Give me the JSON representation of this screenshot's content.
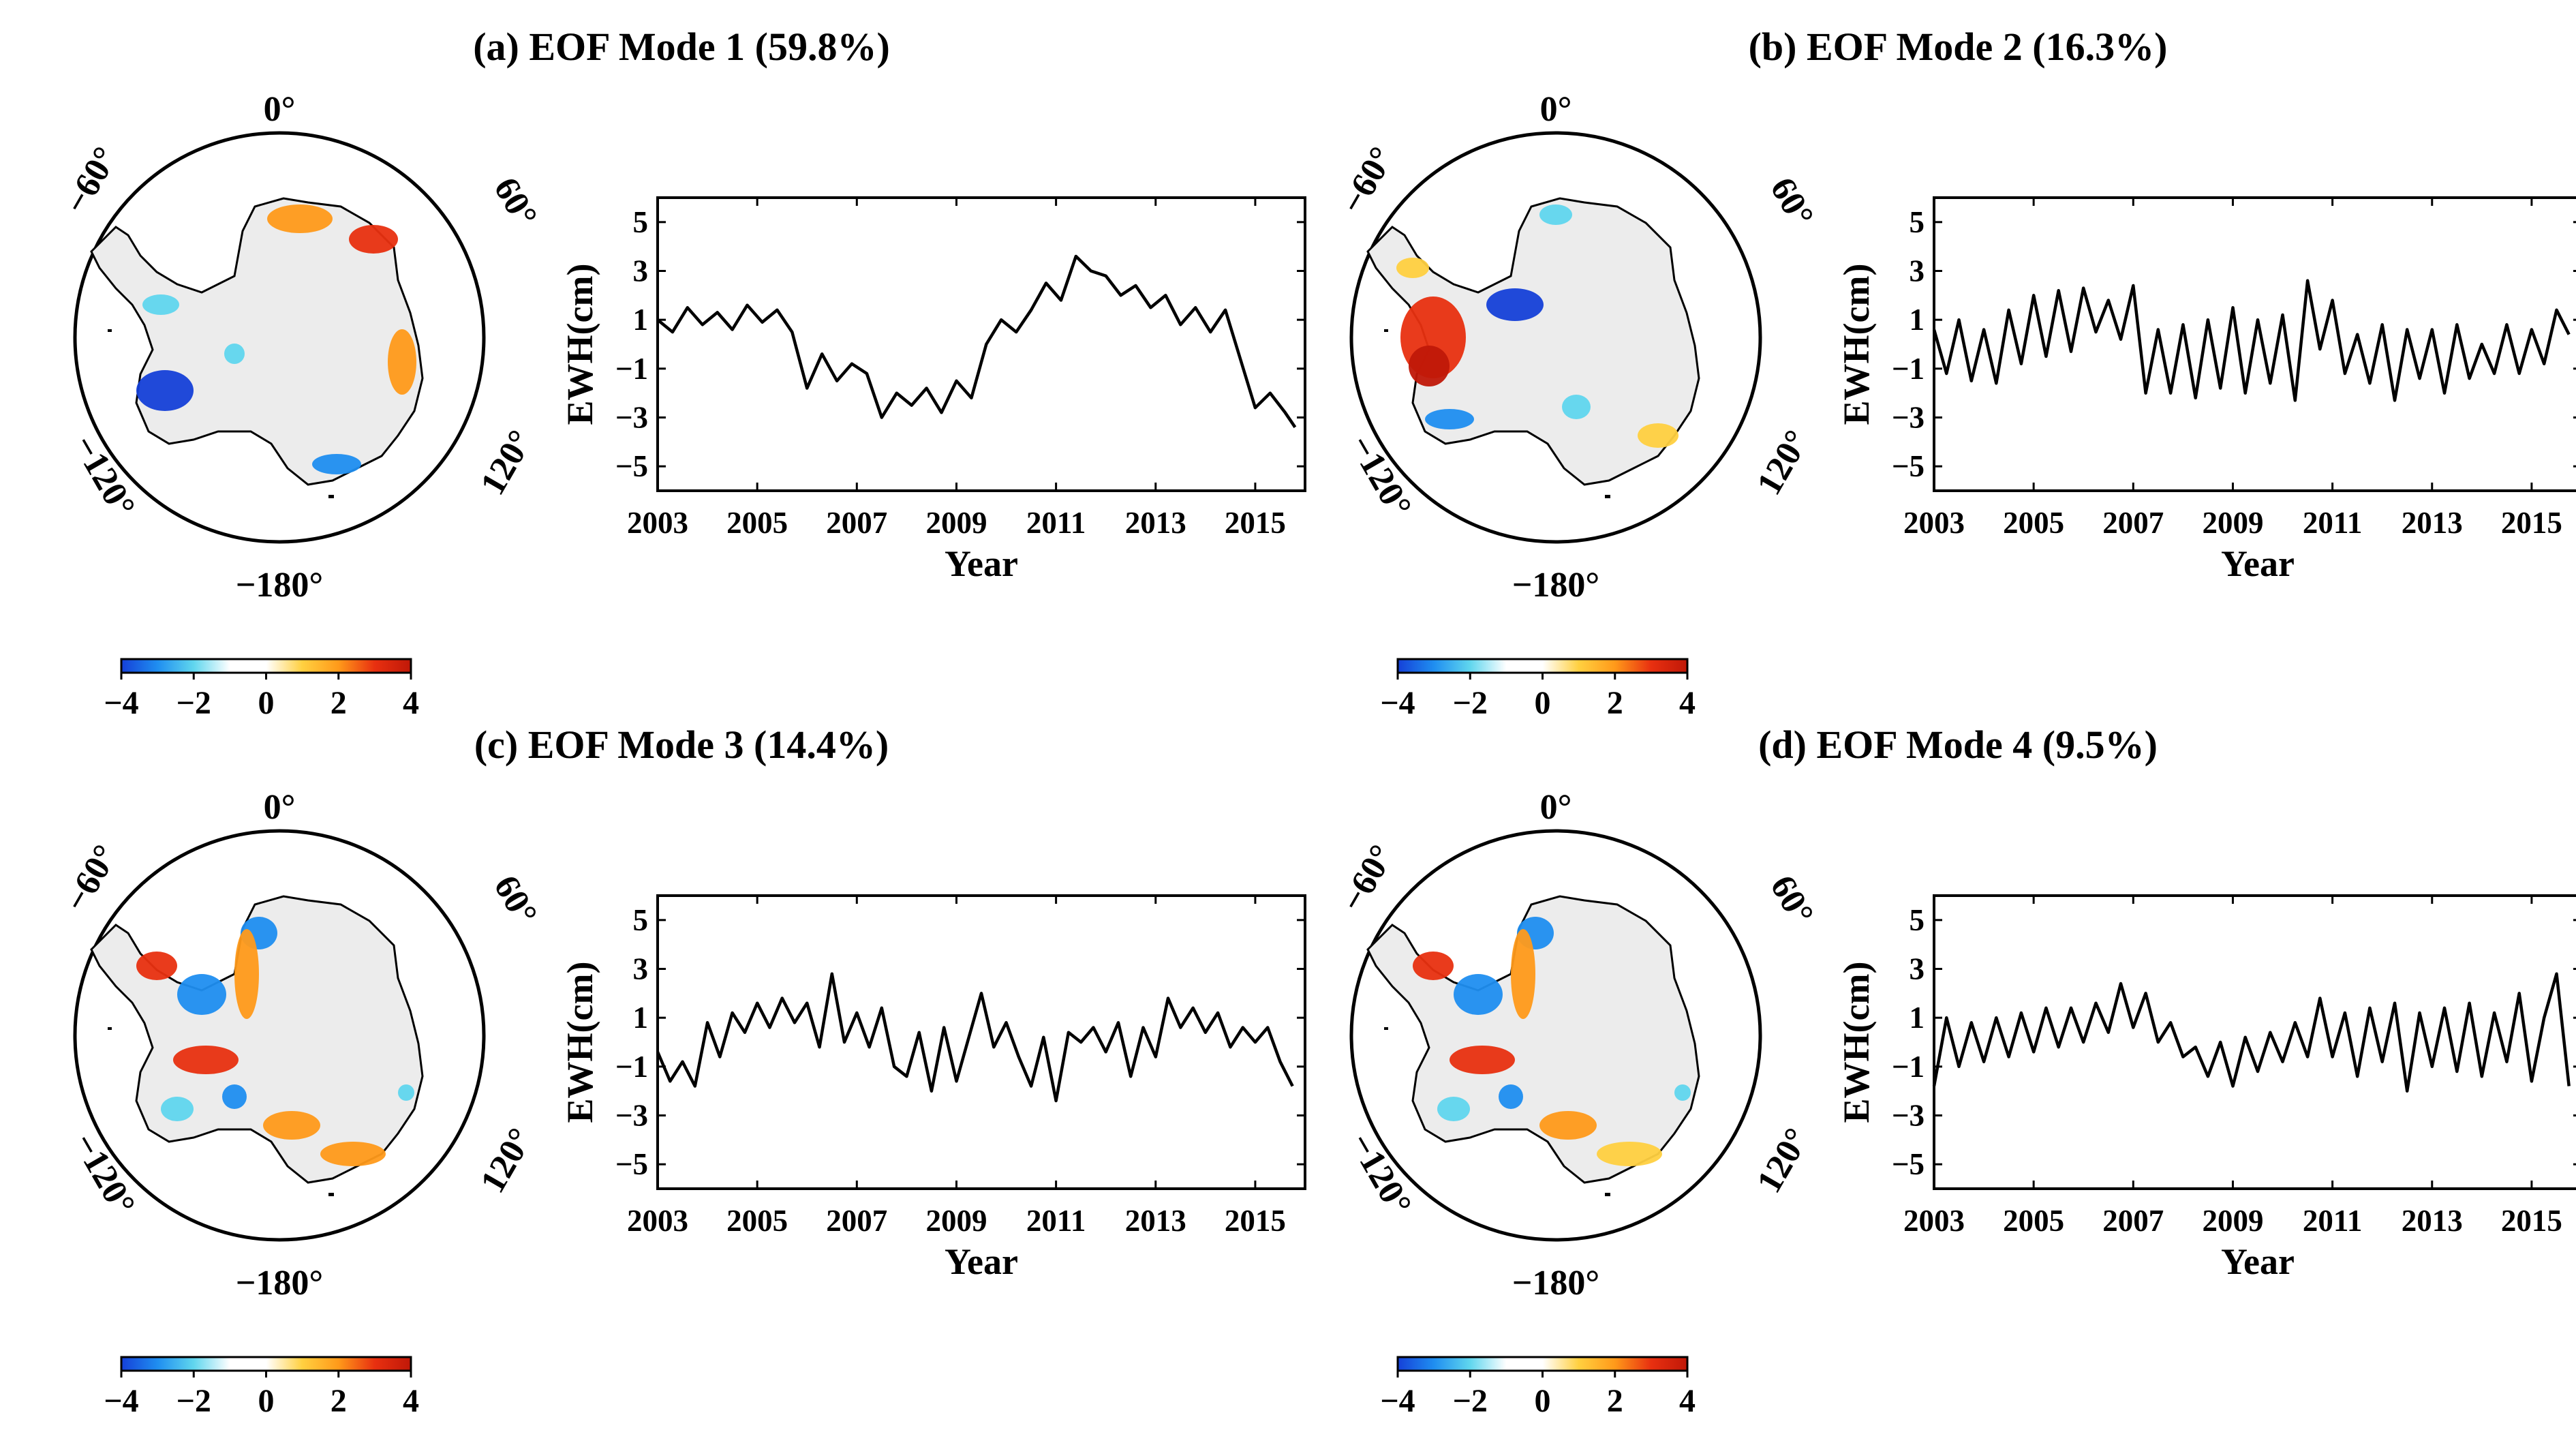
{
  "figure": {
    "colorbar": {
      "ticks": [
        "−4",
        "−2",
        "0",
        "2",
        "4"
      ],
      "stops": [
        "#1540d8",
        "#1f8ef0",
        "#60d6ee",
        "#ffffff",
        "#ffffff",
        "#ffd040",
        "#ff9a1a",
        "#e83010",
        "#c01808"
      ]
    },
    "map_labels": {
      "top": "0°",
      "left": "−60°",
      "right": "60°",
      "lower_left": "−120°",
      "lower_right": "120°",
      "bottom": "−180°"
    }
  },
  "chart_data": [
    {
      "type": "line",
      "title": "(a) EOF Mode 1 (59.8%)",
      "xlabel": "Year",
      "ylabel": "EWH(cm)",
      "xlim": [
        2003,
        2016
      ],
      "ylim": [
        -6,
        6
      ],
      "xticks": [
        "2003",
        "2005",
        "2007",
        "2009",
        "2011",
        "2013",
        "2015"
      ],
      "yticks": [
        "5",
        "3",
        "1",
        "-1",
        "-3",
        "-5"
      ],
      "series": [
        {
          "x": [
            2003.0,
            2003.3,
            2003.6,
            2003.9,
            2004.2,
            2004.5,
            2004.8,
            2005.1,
            2005.4,
            2005.7,
            2006.0,
            2006.3,
            2006.6,
            2006.9,
            2007.2,
            2007.5,
            2007.8,
            2008.1,
            2008.4,
            2008.7,
            2009.0,
            2009.3,
            2009.6,
            2009.9,
            2010.2,
            2010.5,
            2010.8,
            2011.1,
            2011.4,
            2011.7,
            2012.0,
            2012.3,
            2012.6,
            2012.9,
            2013.2,
            2013.5,
            2013.8,
            2014.1,
            2014.4,
            2014.7,
            2015.0,
            2015.3,
            2015.6,
            2015.8
          ],
          "y": [
            1.0,
            0.5,
            1.5,
            0.8,
            1.3,
            0.6,
            1.6,
            0.9,
            1.4,
            0.5,
            -1.8,
            -0.4,
            -1.5,
            -0.8,
            -1.2,
            -3.0,
            -2.0,
            -2.5,
            -1.8,
            -2.8,
            -1.5,
            -2.2,
            0.0,
            1.0,
            0.5,
            1.4,
            2.5,
            1.8,
            3.6,
            3.0,
            2.8,
            2.0,
            2.4,
            1.5,
            2.0,
            0.8,
            1.5,
            0.5,
            1.4,
            -0.6,
            -2.6,
            -2.0,
            -2.8,
            -3.4
          ]
        }
      ]
    },
    {
      "type": "line",
      "title": "(b) EOF Mode 2 (16.3%)",
      "xlabel": "Year",
      "ylabel": "EWH(cm)",
      "xlim": [
        2003,
        2016
      ],
      "ylim": [
        -6,
        6
      ],
      "xticks": [
        "2003",
        "2005",
        "2007",
        "2009",
        "2011",
        "2013",
        "2015"
      ],
      "yticks": [
        "5",
        "3",
        "1",
        "-1",
        "-3",
        "-5"
      ],
      "series": [
        {
          "x": [
            2003.0,
            2003.25,
            2003.5,
            2003.75,
            2004.0,
            2004.25,
            2004.5,
            2004.75,
            2005.0,
            2005.25,
            2005.5,
            2005.75,
            2006.0,
            2006.25,
            2006.5,
            2006.75,
            2007.0,
            2007.25,
            2007.5,
            2007.75,
            2008.0,
            2008.25,
            2008.5,
            2008.75,
            2009.0,
            2009.25,
            2009.5,
            2009.75,
            2010.0,
            2010.25,
            2010.5,
            2010.75,
            2011.0,
            2011.25,
            2011.5,
            2011.75,
            2012.0,
            2012.25,
            2012.5,
            2012.75,
            2013.0,
            2013.25,
            2013.5,
            2013.75,
            2014.0,
            2014.25,
            2014.5,
            2014.75,
            2015.0,
            2015.25,
            2015.5,
            2015.75
          ],
          "y": [
            0.6,
            -1.2,
            1.0,
            -1.5,
            0.6,
            -1.6,
            1.4,
            -0.8,
            2.0,
            -0.5,
            2.2,
            -0.3,
            2.3,
            0.5,
            1.8,
            0.2,
            2.4,
            -2.0,
            0.6,
            -2.0,
            0.8,
            -2.2,
            1.0,
            -1.8,
            1.5,
            -2.0,
            1.0,
            -1.6,
            1.2,
            -2.3,
            2.6,
            -0.2,
            1.8,
            -1.2,
            0.4,
            -1.6,
            0.8,
            -2.3,
            0.6,
            -1.4,
            0.6,
            -2.0,
            0.8,
            -1.4,
            0.0,
            -1.2,
            0.8,
            -1.2,
            0.6,
            -0.8,
            1.4,
            0.4
          ]
        }
      ]
    },
    {
      "type": "line",
      "title": "(c) EOF Mode 3 (14.4%)",
      "xlabel": "Year",
      "ylabel": "EWH(cm)",
      "xlim": [
        2003,
        2016
      ],
      "ylim": [
        -6,
        6
      ],
      "xticks": [
        "2003",
        "2005",
        "2007",
        "2009",
        "2011",
        "2013",
        "2015"
      ],
      "yticks": [
        "5",
        "3",
        "1",
        "-1",
        "-3",
        "-5"
      ],
      "series": [
        {
          "x": [
            2003.0,
            2003.25,
            2003.5,
            2003.75,
            2004.0,
            2004.25,
            2004.5,
            2004.75,
            2005.0,
            2005.25,
            2005.5,
            2005.75,
            2006.0,
            2006.25,
            2006.5,
            2006.75,
            2007.0,
            2007.25,
            2007.5,
            2007.75,
            2008.0,
            2008.25,
            2008.5,
            2008.75,
            2009.0,
            2009.25,
            2009.5,
            2009.75,
            2010.0,
            2010.25,
            2010.5,
            2010.75,
            2011.0,
            2011.25,
            2011.5,
            2011.75,
            2012.0,
            2012.25,
            2012.5,
            2012.75,
            2013.0,
            2013.25,
            2013.5,
            2013.75,
            2014.0,
            2014.25,
            2014.5,
            2014.75,
            2015.0,
            2015.25,
            2015.5,
            2015.75
          ],
          "y": [
            -0.4,
            -1.6,
            -0.8,
            -1.8,
            0.8,
            -0.6,
            1.2,
            0.4,
            1.6,
            0.6,
            1.8,
            0.8,
            1.6,
            -0.2,
            2.8,
            0.0,
            1.2,
            -0.2,
            1.4,
            -1.0,
            -1.4,
            0.4,
            -2.0,
            0.6,
            -1.6,
            0.2,
            2.0,
            -0.2,
            0.8,
            -0.6,
            -1.8,
            0.2,
            -2.4,
            0.4,
            0.0,
            0.6,
            -0.4,
            0.8,
            -1.4,
            0.6,
            -0.6,
            1.8,
            0.6,
            1.4,
            0.4,
            1.2,
            -0.2,
            0.6,
            0.0,
            0.6,
            -0.8,
            -1.8
          ]
        }
      ]
    },
    {
      "type": "line",
      "title": "(d) EOF Mode 4 (9.5%)",
      "xlabel": "Year",
      "ylabel": "EWH(cm)",
      "xlim": [
        2003,
        2016
      ],
      "ylim": [
        -6,
        6
      ],
      "xticks": [
        "2003",
        "2005",
        "2007",
        "2009",
        "2011",
        "2013",
        "2015"
      ],
      "yticks": [
        "5",
        "3",
        "1",
        "-1",
        "-3",
        "-5"
      ],
      "series": [
        {
          "x": [
            2003.0,
            2003.25,
            2003.5,
            2003.75,
            2004.0,
            2004.25,
            2004.5,
            2004.75,
            2005.0,
            2005.25,
            2005.5,
            2005.75,
            2006.0,
            2006.25,
            2006.5,
            2006.75,
            2007.0,
            2007.25,
            2007.5,
            2007.75,
            2008.0,
            2008.25,
            2008.5,
            2008.75,
            2009.0,
            2009.25,
            2009.5,
            2009.75,
            2010.0,
            2010.25,
            2010.5,
            2010.75,
            2011.0,
            2011.25,
            2011.5,
            2011.75,
            2012.0,
            2012.25,
            2012.5,
            2012.75,
            2013.0,
            2013.25,
            2013.5,
            2013.75,
            2014.0,
            2014.25,
            2014.5,
            2014.75,
            2015.0,
            2015.25,
            2015.5,
            2015.75
          ],
          "y": [
            -1.8,
            1.0,
            -1.0,
            0.8,
            -0.8,
            1.0,
            -0.6,
            1.2,
            -0.4,
            1.4,
            -0.2,
            1.4,
            0.0,
            1.6,
            0.4,
            2.4,
            0.6,
            2.0,
            0.0,
            0.8,
            -0.6,
            -0.2,
            -1.4,
            0.0,
            -1.8,
            0.2,
            -1.2,
            0.4,
            -0.8,
            0.8,
            -0.6,
            1.8,
            -0.6,
            1.2,
            -1.4,
            1.4,
            -0.8,
            1.6,
            -2.0,
            1.2,
            -1.0,
            1.4,
            -1.2,
            1.6,
            -1.4,
            1.2,
            -0.8,
            2.0,
            -1.6,
            1.0,
            2.8,
            -1.8
          ]
        }
      ]
    }
  ]
}
